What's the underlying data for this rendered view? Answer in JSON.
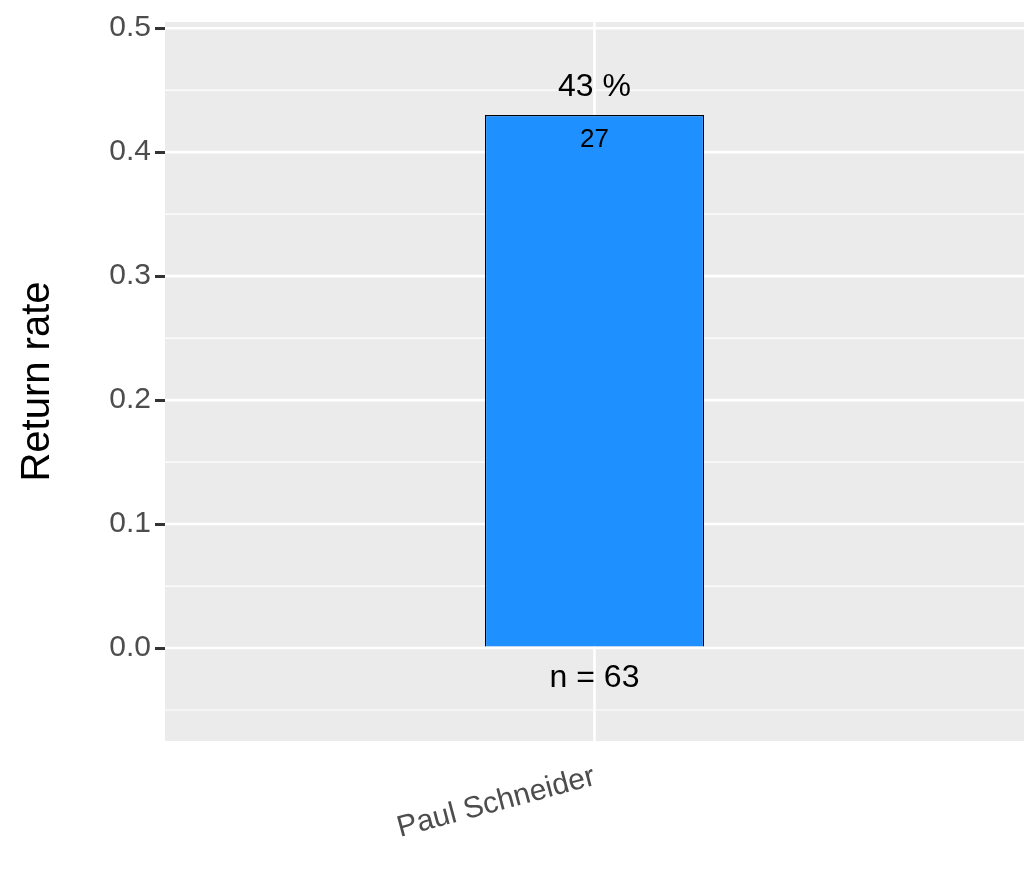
{
  "chart_data": {
    "type": "bar",
    "ylabel": "Return rate",
    "categories": [
      "Paul Schneider"
    ],
    "values": [
      0.43
    ],
    "value_labels": [
      "43 %"
    ],
    "color": "#1e90ff",
    "ylim": [
      -0.075,
      0.505
    ],
    "yticks": [
      {
        "value": 0.0,
        "label": "0.0"
      },
      {
        "value": 0.1,
        "label": "0.1"
      },
      {
        "value": 0.2,
        "label": "0.2"
      },
      {
        "value": 0.3,
        "label": "0.3"
      },
      {
        "value": 0.4,
        "label": "0.4"
      },
      {
        "value": 0.5,
        "label": "0.5"
      }
    ],
    "annotations": [
      {
        "text": "27",
        "x": "Paul Schneider",
        "y": 0.43
      },
      {
        "text": "n = 63",
        "x": "Paul Schneider",
        "y": 0
      }
    ],
    "grid": true,
    "legend": false
  }
}
